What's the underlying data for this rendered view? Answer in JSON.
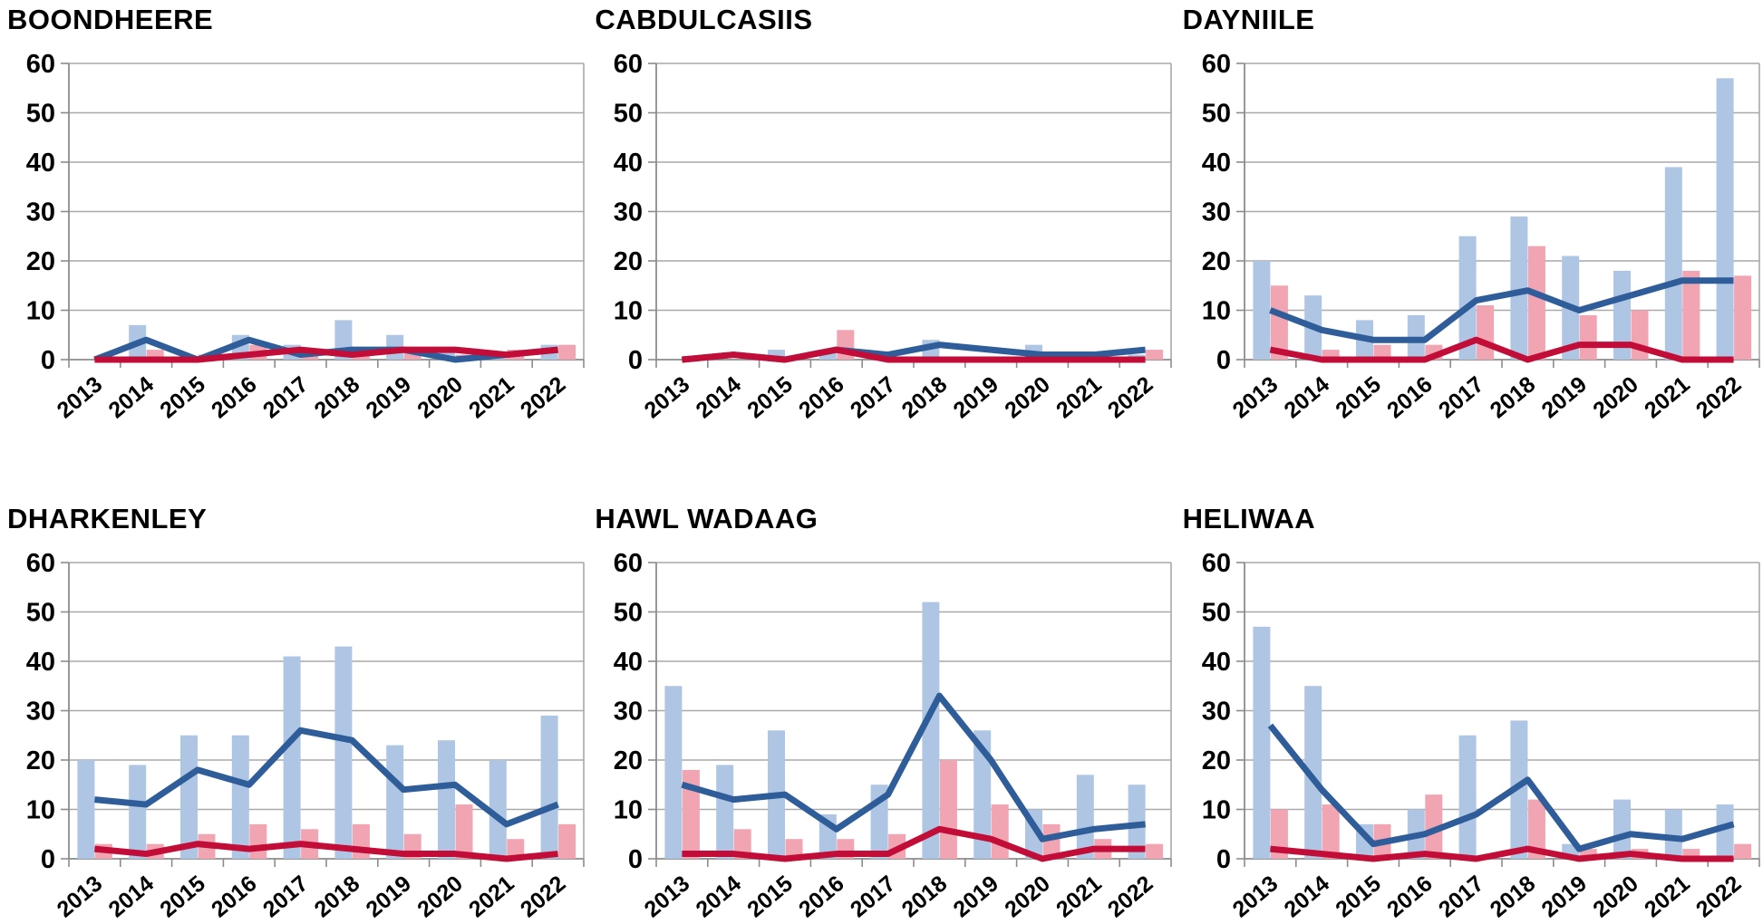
{
  "page": {
    "background_color": "#ffffff",
    "text_color": "#000000"
  },
  "colors": {
    "bar_blue": "#aec5e3",
    "bar_pink": "#f1a4b2",
    "line_blue": "#2f5d99",
    "line_red": "#c20d38",
    "gridline": "#a9a9a9",
    "axis": "#8c8c8c",
    "tick": "#8c8c8c"
  },
  "y_axis": {
    "min": 0,
    "max": 60,
    "step": 10,
    "tick_labels": [
      "0",
      "10",
      "20",
      "30",
      "40",
      "50",
      "60"
    ]
  },
  "categories": [
    "2013",
    "2014",
    "2015",
    "2016",
    "2017",
    "2018",
    "2019",
    "2020",
    "2021",
    "2022"
  ],
  "chart_data": [
    {
      "type": "bar+line combo",
      "title": "BOONDHEERE",
      "categories": [
        "2013",
        "2014",
        "2015",
        "2016",
        "2017",
        "2018",
        "2019",
        "2020",
        "2021",
        "2022"
      ],
      "ylim": [
        0,
        60
      ],
      "grid": true,
      "legend": "none",
      "series": [
        {
          "name": "bars-blue",
          "type": "bar",
          "values": [
            0,
            7,
            0,
            5,
            3,
            8,
            5,
            2,
            1,
            3
          ]
        },
        {
          "name": "bars-pink",
          "type": "bar",
          "values": [
            0,
            2,
            1,
            3,
            2,
            2,
            2,
            1,
            2,
            3
          ]
        },
        {
          "name": "line-blue",
          "type": "line",
          "values": [
            0,
            4,
            0,
            4,
            1,
            2,
            2,
            0,
            1,
            2
          ]
        },
        {
          "name": "line-red",
          "type": "line",
          "values": [
            0,
            0,
            0,
            1,
            2,
            1,
            2,
            2,
            1,
            2
          ]
        }
      ]
    },
    {
      "type": "bar+line combo",
      "title": "CABDULCASIIS",
      "categories": [
        "2013",
        "2014",
        "2015",
        "2016",
        "2017",
        "2018",
        "2019",
        "2020",
        "2021",
        "2022"
      ],
      "ylim": [
        0,
        60
      ],
      "grid": true,
      "legend": "none",
      "series": [
        {
          "name": "bars-blue",
          "type": "bar",
          "values": [
            0,
            0,
            2,
            2,
            0,
            4,
            0,
            3,
            0,
            1
          ]
        },
        {
          "name": "bars-pink",
          "type": "bar",
          "values": [
            0,
            0,
            0,
            6,
            0,
            0,
            0,
            1,
            0,
            2
          ]
        },
        {
          "name": "line-blue",
          "type": "line",
          "values": [
            0,
            1,
            0,
            2,
            1,
            3,
            2,
            1,
            1,
            2
          ]
        },
        {
          "name": "line-red",
          "type": "line",
          "values": [
            0,
            1,
            0,
            2,
            0,
            0,
            0,
            0,
            0,
            0
          ]
        }
      ]
    },
    {
      "type": "bar+line combo",
      "title": "DAYNIILE",
      "categories": [
        "2013",
        "2014",
        "2015",
        "2016",
        "2017",
        "2018",
        "2019",
        "2020",
        "2021",
        "2022"
      ],
      "ylim": [
        0,
        60
      ],
      "grid": true,
      "legend": "none",
      "series": [
        {
          "name": "bars-blue",
          "type": "bar",
          "values": [
            20,
            13,
            8,
            9,
            25,
            29,
            21,
            18,
            39,
            57
          ]
        },
        {
          "name": "bars-pink",
          "type": "bar",
          "values": [
            15,
            2,
            3,
            3,
            11,
            23,
            9,
            10,
            18,
            17
          ]
        },
        {
          "name": "line-blue",
          "type": "line",
          "values": [
            10,
            6,
            4,
            4,
            12,
            14,
            10,
            13,
            16,
            16
          ]
        },
        {
          "name": "line-red",
          "type": "line",
          "values": [
            2,
            0,
            0,
            0,
            4,
            0,
            3,
            3,
            0,
            0
          ]
        }
      ]
    },
    {
      "type": "bar+line combo",
      "title": "DHARKENLEY",
      "categories": [
        "2013",
        "2014",
        "2015",
        "2016",
        "2017",
        "2018",
        "2019",
        "2020",
        "2021",
        "2022"
      ],
      "ylim": [
        0,
        60
      ],
      "grid": true,
      "legend": "none",
      "series": [
        {
          "name": "bars-blue",
          "type": "bar",
          "values": [
            20,
            19,
            25,
            25,
            41,
            43,
            23,
            24,
            20,
            29
          ]
        },
        {
          "name": "bars-pink",
          "type": "bar",
          "values": [
            3,
            3,
            5,
            7,
            6,
            7,
            5,
            11,
            4,
            7
          ]
        },
        {
          "name": "line-blue",
          "type": "line",
          "values": [
            12,
            11,
            18,
            15,
            26,
            24,
            14,
            15,
            7,
            11
          ]
        },
        {
          "name": "line-red",
          "type": "line",
          "values": [
            2,
            1,
            3,
            2,
            3,
            2,
            1,
            1,
            0,
            1
          ]
        }
      ]
    },
    {
      "type": "bar+line combo",
      "title": "HAWL WADAAG",
      "categories": [
        "2013",
        "2014",
        "2015",
        "2016",
        "2017",
        "2018",
        "2019",
        "2020",
        "2021",
        "2022"
      ],
      "ylim": [
        0,
        60
      ],
      "grid": true,
      "legend": "none",
      "series": [
        {
          "name": "bars-blue",
          "type": "bar",
          "values": [
            35,
            19,
            26,
            9,
            15,
            52,
            26,
            10,
            17,
            15
          ]
        },
        {
          "name": "bars-pink",
          "type": "bar",
          "values": [
            18,
            6,
            4,
            4,
            5,
            20,
            11,
            7,
            4,
            3
          ]
        },
        {
          "name": "line-blue",
          "type": "line",
          "values": [
            15,
            12,
            13,
            6,
            13,
            33,
            20,
            4,
            6,
            7
          ]
        },
        {
          "name": "line-red",
          "type": "line",
          "values": [
            1,
            1,
            0,
            1,
            1,
            6,
            4,
            0,
            2,
            2
          ]
        }
      ]
    },
    {
      "type": "bar+line combo",
      "title": "HELIWAA",
      "categories": [
        "2013",
        "2014",
        "2015",
        "2016",
        "2017",
        "2018",
        "2019",
        "2020",
        "2021",
        "2022"
      ],
      "ylim": [
        0,
        60
      ],
      "grid": true,
      "legend": "none",
      "series": [
        {
          "name": "bars-blue",
          "type": "bar",
          "values": [
            47,
            35,
            7,
            10,
            25,
            28,
            3,
            12,
            10,
            11
          ]
        },
        {
          "name": "bars-pink",
          "type": "bar",
          "values": [
            10,
            11,
            7,
            13,
            0,
            12,
            2,
            2,
            2,
            3
          ]
        },
        {
          "name": "line-blue",
          "type": "line",
          "values": [
            27,
            14,
            3,
            5,
            9,
            16,
            2,
            5,
            4,
            7
          ]
        },
        {
          "name": "line-red",
          "type": "line",
          "values": [
            2,
            1,
            0,
            1,
            0,
            2,
            0,
            1,
            0,
            0
          ]
        }
      ]
    }
  ]
}
